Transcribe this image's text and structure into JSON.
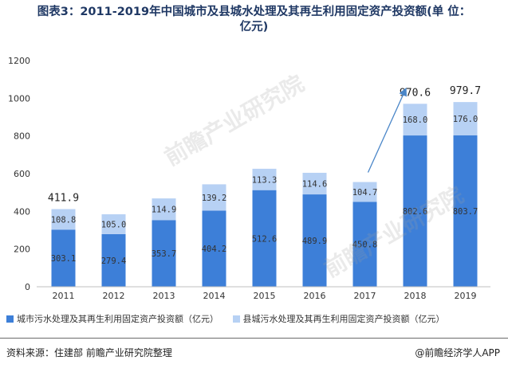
{
  "title": "图表3：2011-2019年中国城市及县城水处理及其再生利用固定资产投资额(单 位：亿元)",
  "title_lines": [
    "图表3：2011-2019年中国城市及县城水处理及其再生利用固定资产投资额(单 位：",
    "亿元)"
  ],
  "watermark": "前瞻产业研究院",
  "colors": {
    "city": "#3d7fd8",
    "county": "#b7d1f4",
    "arrow": "#4a86c8",
    "axis": "#bfbfbf"
  },
  "chart_data": {
    "type": "bar",
    "stacked": true,
    "categories": [
      "2011",
      "2012",
      "2013",
      "2014",
      "2015",
      "2016",
      "2017",
      "2018",
      "2019"
    ],
    "series": [
      {
        "name": "城市污水处理及其再生利用固定资产投资额（亿元）",
        "values": [
          303.1,
          279.4,
          353.7,
          404.2,
          512.6,
          489.9,
          450.8,
          802.6,
          803.7
        ]
      },
      {
        "name": "县城污水处理及其再生利用固定资产投资额（亿元）",
        "values": [
          108.8,
          105.0,
          114.9,
          139.2,
          113.3,
          114.6,
          104.7,
          168.0,
          176.0
        ]
      }
    ],
    "totals": [
      {
        "category": "2011",
        "value": "411.9"
      },
      {
        "category": "2018",
        "value": "970.6"
      },
      {
        "category": "2019",
        "value": "979.7"
      }
    ],
    "ylim": [
      0,
      1200
    ],
    "yticks": [
      0,
      200,
      400,
      600,
      800,
      1000,
      1200
    ],
    "grid": false,
    "legend_position": "bottom",
    "annotation": "trend arrow from 2017 to 2018"
  },
  "footer": {
    "source": "资料来源：住建部 前瞻产业研究院整理",
    "brand": "@前瞻经济学人APP"
  }
}
